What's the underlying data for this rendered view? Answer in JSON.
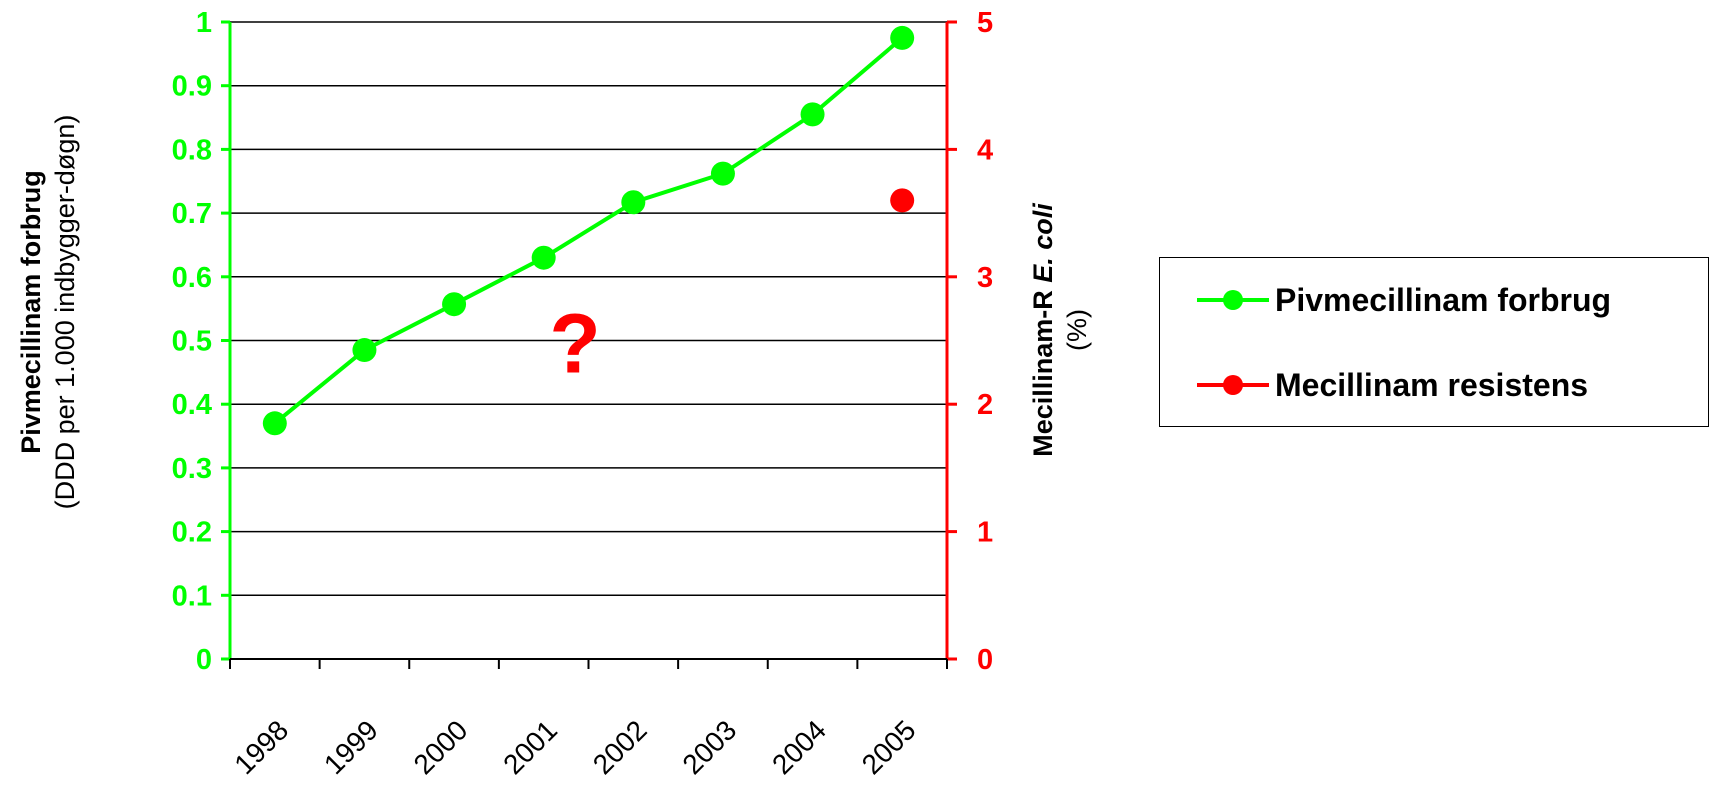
{
  "chart_data": {
    "type": "line",
    "categories": [
      "1998",
      "1999",
      "2000",
      "2001",
      "2002",
      "2003",
      "2004",
      "2005"
    ],
    "series": [
      {
        "name": "Pivmecillinam forbrug",
        "axis": "left",
        "color": "#00ff00",
        "values": [
          0.37,
          0.485,
          0.557,
          0.63,
          0.717,
          0.762,
          0.855,
          0.975
        ]
      },
      {
        "name": "Mecillinam resistens",
        "axis": "right",
        "color": "#ff0000",
        "values": [
          null,
          null,
          null,
          null,
          null,
          null,
          null,
          3.6
        ]
      }
    ],
    "y_left": {
      "label_bold": "Pivmecillinam forbrug",
      "label_plain": "(DDD per 1.000 indbygger-døgn)",
      "range": [
        0,
        1
      ],
      "ticks": [
        "0",
        "0.1",
        "0.2",
        "0.3",
        "0.4",
        "0.5",
        "0.6",
        "0.7",
        "0.8",
        "0.9",
        "1"
      ],
      "color": "#00ff00"
    },
    "y_right": {
      "label_bold_prefix": "Mecillinam-R ",
      "label_bold_italic": "E. coli",
      "label_plain": "(%)",
      "range": [
        0,
        5
      ],
      "ticks": [
        "0",
        "1",
        "2",
        "3",
        "4",
        "5"
      ],
      "color": "#ff0000"
    },
    "annotation": {
      "text": "?",
      "x_category_index": 3.85,
      "y_left_value": 0.45,
      "color": "#ff0000"
    },
    "grid": true,
    "legend_position": "right"
  },
  "legend": {
    "items": [
      {
        "label": "Pivmecillinam forbrug",
        "color": "#00ff00"
      },
      {
        "label": "Mecillinam resistens",
        "color": "#ff0000"
      }
    ]
  }
}
